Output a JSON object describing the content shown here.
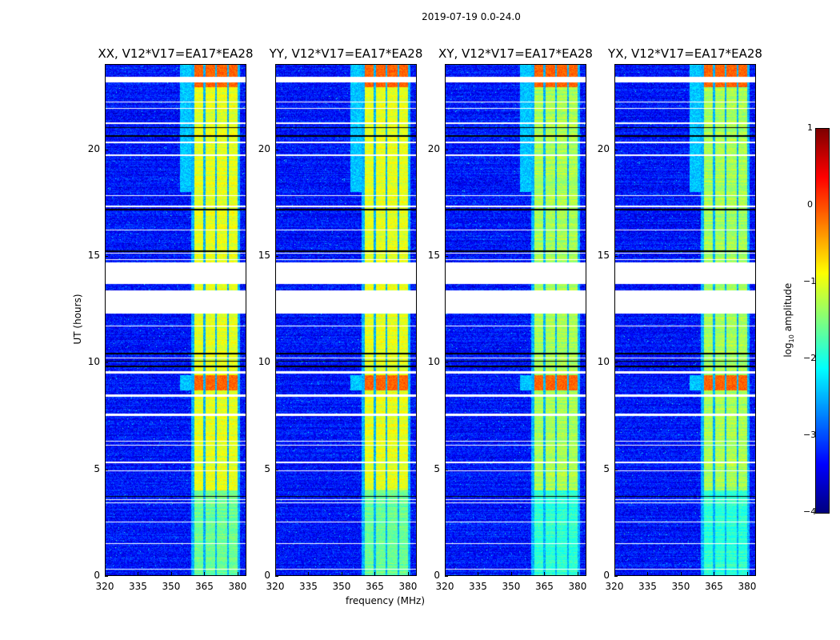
{
  "chart_data": {
    "type": "heatmap",
    "suptitle": "2019-07-19 0.0-24.0",
    "panels": [
      {
        "title": "XX, V12*V17=EA17*EA28"
      },
      {
        "title": "YY, V12*V17=EA17*EA28"
      },
      {
        "title": "XY, V12*V17=EA17*EA28"
      },
      {
        "title": "YX, V12*V17=EA17*EA28"
      }
    ],
    "xlabel": "frequency (MHz)",
    "ylabel": "UT (hours)",
    "xlim": [
      320,
      384
    ],
    "ylim": [
      0,
      24
    ],
    "xticks": [
      "320",
      "335",
      "350",
      "365",
      "380"
    ],
    "xtick_values": [
      320,
      335,
      350,
      365,
      380
    ],
    "yticks": [
      "0",
      "5",
      "10",
      "15",
      "20"
    ],
    "ytick_values": [
      0,
      5,
      10,
      15,
      20
    ],
    "colorbar": {
      "label": "log10 amplitude",
      "label_main": "log",
      "label_sub": "10",
      "label_rest": " amplitude",
      "range": [
        -4,
        1
      ],
      "ticks": [
        "1",
        "0",
        "−1",
        "−2",
        "−3",
        "−4"
      ],
      "tick_values": [
        1,
        0,
        -1,
        -2,
        -3,
        -4
      ],
      "colormap": "jet"
    },
    "background_level": -3.3,
    "signal_bands_mhz": [
      [
        360.5,
        364.5
      ],
      [
        365.5,
        369.8
      ],
      [
        370.8,
        375.2
      ],
      [
        376.2,
        380.2
      ]
    ],
    "signal_level": -1.0,
    "strong_hours": [
      [
        22.9,
        24
      ],
      [
        8.7,
        9.4
      ]
    ],
    "blank_hours": [
      [
        12.3,
        13.4
      ],
      [
        13.7,
        14.7
      ],
      [
        23.15,
        23.4
      ],
      [
        22.2,
        22.25
      ],
      [
        21.9,
        21.95
      ],
      [
        21.2,
        21.25
      ],
      [
        20.3,
        20.35
      ],
      [
        19.7,
        19.75
      ],
      [
        17.8,
        17.85
      ],
      [
        17.3,
        17.35
      ],
      [
        16.2,
        16.25
      ],
      [
        15.1,
        15.15
      ],
      [
        14.8,
        14.85
      ],
      [
        11.7,
        11.75
      ],
      [
        10.2,
        10.25
      ],
      [
        9.5,
        9.6
      ],
      [
        8.4,
        8.5
      ],
      [
        7.5,
        7.6
      ],
      [
        6.3,
        6.35
      ],
      [
        6.1,
        6.15
      ],
      [
        5.3,
        5.35
      ],
      [
        4.9,
        4.95
      ],
      [
        3.55,
        3.6
      ],
      [
        3.4,
        3.45
      ],
      [
        2.5,
        2.55
      ],
      [
        1.5,
        1.55
      ],
      [
        0.3,
        0.35
      ]
    ],
    "flagged_hours": [
      [
        21.0,
        21.05
      ],
      [
        20.6,
        20.65
      ],
      [
        17.15,
        17.2
      ],
      [
        15.2,
        15.25
      ],
      [
        10.4,
        10.45
      ],
      [
        10.05,
        10.1
      ],
      [
        9.8,
        9.85
      ],
      [
        3.7,
        3.75
      ]
    ]
  }
}
